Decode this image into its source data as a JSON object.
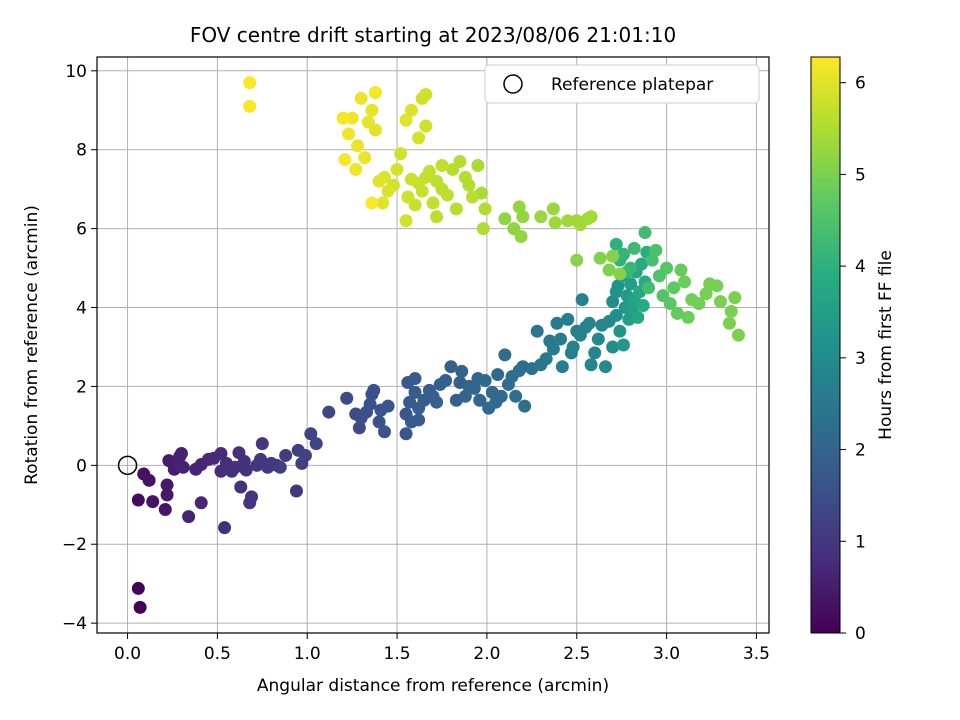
{
  "chart_data": {
    "type": "scatter",
    "title": "FOV centre drift starting at 2023/08/06 21:01:10",
    "xlabel": "Angular distance from reference (arcmin)",
    "ylabel": "Rotation from reference (arcmin)",
    "xlim": [
      -0.17,
      3.57
    ],
    "ylim": [
      -4.25,
      10.35
    ],
    "xticks": [
      0.0,
      0.5,
      1.0,
      1.5,
      2.0,
      2.5,
      3.0,
      3.5
    ],
    "yticks": [
      -4,
      -2,
      0,
      2,
      4,
      6,
      8,
      10
    ],
    "grid": true,
    "legend": {
      "placement": "top-right",
      "entries": [
        "Reference platepar"
      ]
    },
    "reference_point": {
      "x": 0.0,
      "y": 0.0
    },
    "colorbar": {
      "label": "Hours from first FF file",
      "range": [
        0,
        6.28
      ],
      "ticks": [
        0,
        1,
        2,
        3,
        4,
        5,
        6
      ],
      "colormap": "viridis"
    },
    "points": [
      [
        0.06,
        -3.12,
        0.05
      ],
      [
        0.07,
        -3.6,
        0.05
      ],
      [
        0.06,
        -0.88,
        0.2
      ],
      [
        0.09,
        -0.22,
        0.3
      ],
      [
        0.12,
        -0.38,
        0.3
      ],
      [
        0.14,
        -0.92,
        0.35
      ],
      [
        0.21,
        -1.12,
        0.4
      ],
      [
        0.22,
        -0.75,
        0.45
      ],
      [
        0.22,
        -0.5,
        0.45
      ],
      [
        0.23,
        0.12,
        0.5
      ],
      [
        0.26,
        -0.1,
        0.5
      ],
      [
        0.28,
        0.1,
        0.55
      ],
      [
        0.29,
        0.22,
        0.55
      ],
      [
        0.3,
        0.3,
        0.6
      ],
      [
        0.31,
        -0.05,
        0.6
      ],
      [
        0.34,
        -1.3,
        0.6
      ],
      [
        0.38,
        -0.1,
        0.65
      ],
      [
        0.41,
        0.02,
        0.65
      ],
      [
        0.41,
        -0.95,
        0.7
      ],
      [
        0.45,
        0.15,
        0.7
      ],
      [
        0.48,
        0.18,
        0.75
      ],
      [
        0.52,
        0.3,
        0.75
      ],
      [
        0.52,
        -0.15,
        0.8
      ],
      [
        0.55,
        0.05,
        0.8
      ],
      [
        0.54,
        -1.58,
        0.8
      ],
      [
        0.58,
        -0.15,
        0.85
      ],
      [
        0.6,
        -0.05,
        0.85
      ],
      [
        0.62,
        0.32,
        0.85
      ],
      [
        0.63,
        -0.55,
        0.9
      ],
      [
        0.65,
        0.1,
        0.9
      ],
      [
        0.66,
        -0.12,
        0.9
      ],
      [
        0.68,
        -0.95,
        0.95
      ],
      [
        0.69,
        -0.8,
        0.95
      ],
      [
        0.72,
        0.0,
        0.95
      ],
      [
        0.74,
        0.15,
        1.0
      ],
      [
        0.75,
        0.55,
        1.0
      ],
      [
        0.78,
        -0.05,
        1.0
      ],
      [
        0.8,
        0.05,
        1.05
      ],
      [
        0.83,
        0.0,
        1.05
      ],
      [
        0.85,
        -0.05,
        1.1
      ],
      [
        0.88,
        0.25,
        1.1
      ],
      [
        0.94,
        -0.65,
        0.95
      ],
      [
        0.95,
        0.38,
        1.15
      ],
      [
        0.97,
        0.05,
        1.15
      ],
      [
        0.99,
        0.25,
        1.2
      ],
      [
        1.02,
        0.8,
        1.25
      ],
      [
        1.05,
        0.55,
        1.25
      ],
      [
        1.12,
        1.35,
        1.35
      ],
      [
        1.22,
        1.7,
        1.4
      ],
      [
        1.27,
        1.3,
        1.45
      ],
      [
        1.29,
        0.95,
        1.45
      ],
      [
        1.3,
        1.2,
        1.5
      ],
      [
        1.33,
        1.35,
        1.5
      ],
      [
        1.35,
        1.55,
        1.55
      ],
      [
        1.36,
        1.8,
        1.55
      ],
      [
        1.37,
        1.9,
        1.55
      ],
      [
        1.4,
        1.1,
        1.6
      ],
      [
        1.41,
        1.4,
        1.6
      ],
      [
        1.43,
        0.85,
        1.6
      ],
      [
        1.45,
        1.5,
        1.65
      ],
      [
        1.55,
        0.8,
        1.7
      ],
      [
        1.55,
        1.3,
        1.7
      ],
      [
        1.56,
        2.1,
        1.75
      ],
      [
        1.57,
        1.6,
        1.75
      ],
      [
        1.58,
        1.1,
        1.75
      ],
      [
        1.6,
        2.2,
        1.8
      ],
      [
        1.6,
        1.85,
        1.8
      ],
      [
        1.62,
        1.45,
        1.8
      ],
      [
        1.62,
        1.15,
        1.8
      ],
      [
        1.65,
        1.65,
        1.85
      ],
      [
        1.68,
        1.9,
        1.85
      ],
      [
        1.7,
        1.75,
        1.85
      ],
      [
        1.72,
        1.6,
        1.9
      ],
      [
        1.74,
        2.05,
        1.9
      ],
      [
        1.77,
        2.15,
        1.9
      ],
      [
        1.8,
        2.5,
        1.95
      ],
      [
        1.83,
        1.65,
        1.95
      ],
      [
        1.85,
        2.1,
        1.95
      ],
      [
        1.86,
        2.38,
        2.0
      ],
      [
        1.88,
        1.75,
        2.0
      ],
      [
        1.9,
        2.0,
        2.0
      ],
      [
        1.93,
        1.95,
        2.05
      ],
      [
        1.95,
        2.2,
        2.05
      ],
      [
        1.96,
        1.65,
        2.05
      ],
      [
        1.99,
        2.15,
        2.1
      ],
      [
        2.01,
        1.45,
        2.1
      ],
      [
        2.03,
        1.85,
        2.1
      ],
      [
        2.05,
        1.6,
        2.15
      ],
      [
        2.06,
        2.3,
        2.15
      ],
      [
        2.08,
        1.75,
        2.15
      ],
      [
        2.1,
        2.8,
        2.2
      ],
      [
        2.12,
        2.05,
        2.2
      ],
      [
        2.14,
        2.25,
        2.2
      ],
      [
        2.16,
        1.75,
        2.25
      ],
      [
        2.18,
        2.4,
        2.25
      ],
      [
        2.2,
        2.5,
        2.25
      ],
      [
        2.21,
        1.5,
        2.3
      ],
      [
        2.25,
        2.45,
        2.35
      ],
      [
        2.28,
        3.4,
        2.45
      ],
      [
        2.3,
        2.55,
        2.45
      ],
      [
        2.33,
        2.7,
        2.5
      ],
      [
        2.35,
        3.15,
        2.5
      ],
      [
        2.37,
        2.95,
        2.55
      ],
      [
        2.39,
        3.6,
        2.55
      ],
      [
        2.41,
        3.2,
        2.6
      ],
      [
        2.42,
        2.5,
        2.6
      ],
      [
        2.45,
        3.7,
        2.65
      ],
      [
        2.47,
        2.85,
        2.65
      ],
      [
        2.48,
        3.0,
        2.7
      ],
      [
        2.5,
        3.4,
        2.7
      ],
      [
        2.52,
        3.3,
        2.75
      ],
      [
        2.53,
        4.2,
        2.75
      ],
      [
        2.55,
        3.5,
        2.8
      ],
      [
        2.57,
        3.6,
        2.8
      ],
      [
        2.58,
        2.55,
        2.85
      ],
      [
        2.6,
        2.85,
        2.85
      ],
      [
        2.62,
        3.2,
        2.9
      ],
      [
        2.64,
        3.55,
        2.9
      ],
      [
        2.66,
        2.5,
        2.95
      ],
      [
        2.68,
        3.65,
        2.95
      ],
      [
        2.7,
        3.0,
        3.0
      ],
      [
        2.7,
        4.15,
        3.05
      ],
      [
        2.72,
        3.8,
        3.1
      ],
      [
        2.72,
        4.4,
        3.15
      ],
      [
        2.73,
        4.55,
        3.2
      ],
      [
        2.74,
        3.4,
        3.25
      ],
      [
        2.75,
        4.8,
        3.3
      ],
      [
        2.76,
        3.05,
        3.3
      ],
      [
        2.77,
        4.0,
        3.35
      ],
      [
        2.78,
        4.3,
        3.4
      ],
      [
        2.79,
        3.7,
        3.45
      ],
      [
        2.8,
        4.6,
        3.5
      ],
      [
        2.81,
        3.95,
        3.55
      ],
      [
        2.82,
        4.2,
        3.6
      ],
      [
        2.83,
        4.9,
        3.65
      ],
      [
        2.84,
        3.75,
        3.7
      ],
      [
        2.85,
        4.4,
        3.75
      ],
      [
        2.86,
        5.1,
        3.8
      ],
      [
        2.87,
        4.05,
        3.85
      ],
      [
        2.88,
        4.65,
        3.9
      ],
      [
        2.89,
        5.4,
        3.95
      ],
      [
        2.72,
        5.6,
        4.0
      ],
      [
        2.74,
        5.2,
        4.05
      ],
      [
        2.76,
        5.35,
        4.1
      ],
      [
        2.78,
        4.9,
        4.15
      ],
      [
        2.8,
        5.0,
        4.2
      ],
      [
        2.82,
        5.5,
        4.25
      ],
      [
        2.88,
        5.9,
        4.3
      ],
      [
        2.9,
        4.5,
        4.35
      ],
      [
        2.92,
        5.2,
        4.4
      ],
      [
        2.94,
        5.45,
        4.45
      ],
      [
        2.96,
        4.8,
        4.5
      ],
      [
        2.98,
        4.3,
        4.55
      ],
      [
        3.0,
        5.0,
        4.6
      ],
      [
        3.02,
        4.1,
        4.65
      ],
      [
        3.04,
        4.5,
        4.7
      ],
      [
        3.06,
        3.85,
        4.75
      ],
      [
        3.08,
        4.95,
        4.8
      ],
      [
        3.1,
        4.65,
        4.85
      ],
      [
        3.12,
        3.75,
        4.85
      ],
      [
        3.14,
        4.2,
        4.9
      ],
      [
        3.18,
        4.1,
        4.9
      ],
      [
        3.22,
        4.35,
        4.95
      ],
      [
        3.24,
        4.6,
        4.95
      ],
      [
        3.28,
        4.55,
        4.95
      ],
      [
        3.3,
        4.15,
        5.0
      ],
      [
        3.35,
        3.6,
        5.0
      ],
      [
        3.36,
        3.9,
        5.0
      ],
      [
        3.38,
        4.25,
        5.0
      ],
      [
        3.4,
        3.3,
        5.0
      ],
      [
        2.63,
        5.25,
        5.05
      ],
      [
        2.68,
        4.95,
        5.05
      ],
      [
        2.7,
        5.3,
        5.1
      ],
      [
        2.74,
        4.85,
        5.1
      ],
      [
        2.5,
        5.2,
        5.15
      ],
      [
        2.1,
        6.25,
        5.2
      ],
      [
        2.15,
        6.0,
        5.2
      ],
      [
        2.18,
        6.55,
        5.25
      ],
      [
        2.19,
        5.8,
        5.25
      ],
      [
        2.2,
        6.3,
        5.25
      ],
      [
        2.3,
        6.3,
        5.3
      ],
      [
        2.37,
        6.5,
        5.3
      ],
      [
        2.38,
        6.15,
        5.35
      ],
      [
        2.45,
        6.2,
        5.35
      ],
      [
        2.5,
        6.2,
        5.35
      ],
      [
        2.52,
        6.1,
        5.4
      ],
      [
        2.56,
        6.25,
        5.4
      ],
      [
        2.58,
        6.3,
        5.4
      ],
      [
        1.95,
        7.6,
        5.45
      ],
      [
        1.97,
        6.9,
        5.45
      ],
      [
        1.98,
        6.0,
        5.5
      ],
      [
        1.99,
        6.5,
        5.5
      ],
      [
        1.85,
        7.7,
        5.55
      ],
      [
        1.88,
        7.3,
        5.55
      ],
      [
        1.9,
        7.1,
        5.55
      ],
      [
        1.92,
        6.8,
        5.6
      ],
      [
        1.83,
        6.5,
        5.6
      ],
      [
        1.81,
        7.5,
        5.6
      ],
      [
        1.78,
        6.85,
        5.65
      ],
      [
        1.75,
        7.0,
        5.65
      ],
      [
        1.72,
        7.2,
        5.65
      ],
      [
        1.7,
        6.65,
        5.7
      ],
      [
        1.68,
        7.45,
        5.7
      ],
      [
        1.66,
        7.3,
        5.7
      ],
      [
        1.64,
        6.95,
        5.75
      ],
      [
        1.62,
        7.15,
        5.75
      ],
      [
        1.6,
        6.6,
        5.75
      ],
      [
        1.58,
        7.25,
        5.8
      ],
      [
        1.56,
        6.8,
        5.8
      ],
      [
        1.55,
        6.2,
        5.85
      ],
      [
        1.52,
        7.9,
        5.85
      ],
      [
        1.5,
        7.5,
        5.9
      ],
      [
        1.48,
        7.1,
        5.9
      ],
      [
        1.45,
        6.95,
        5.95
      ],
      [
        1.43,
        7.3,
        5.95
      ],
      [
        1.42,
        6.65,
        6.0
      ],
      [
        1.4,
        7.2,
        6.0
      ],
      [
        1.38,
        8.5,
        6.0
      ],
      [
        1.36,
        9.0,
        6.05
      ],
      [
        1.34,
        8.7,
        6.05
      ],
      [
        1.32,
        7.8,
        6.1
      ],
      [
        1.3,
        9.3,
        6.1
      ],
      [
        1.28,
        8.1,
        6.1
      ],
      [
        1.27,
        7.5,
        6.15
      ],
      [
        1.25,
        8.8,
        6.15
      ],
      [
        1.23,
        8.4,
        6.15
      ],
      [
        1.21,
        7.75,
        6.2
      ],
      [
        1.2,
        8.8,
        6.2
      ],
      [
        1.38,
        9.45,
        6.2
      ],
      [
        1.36,
        6.65,
        6.25
      ],
      [
        1.55,
        8.75,
        6.0
      ],
      [
        1.58,
        9.0,
        5.95
      ],
      [
        1.62,
        8.3,
        5.9
      ],
      [
        1.64,
        9.3,
        5.85
      ],
      [
        1.66,
        9.4,
        5.85
      ],
      [
        1.66,
        8.6,
        5.8
      ],
      [
        0.68,
        9.7,
        6.25
      ],
      [
        0.68,
        9.1,
        6.25
      ],
      [
        1.75,
        7.6,
        5.7
      ],
      [
        1.72,
        6.3,
        5.65
      ]
    ]
  }
}
